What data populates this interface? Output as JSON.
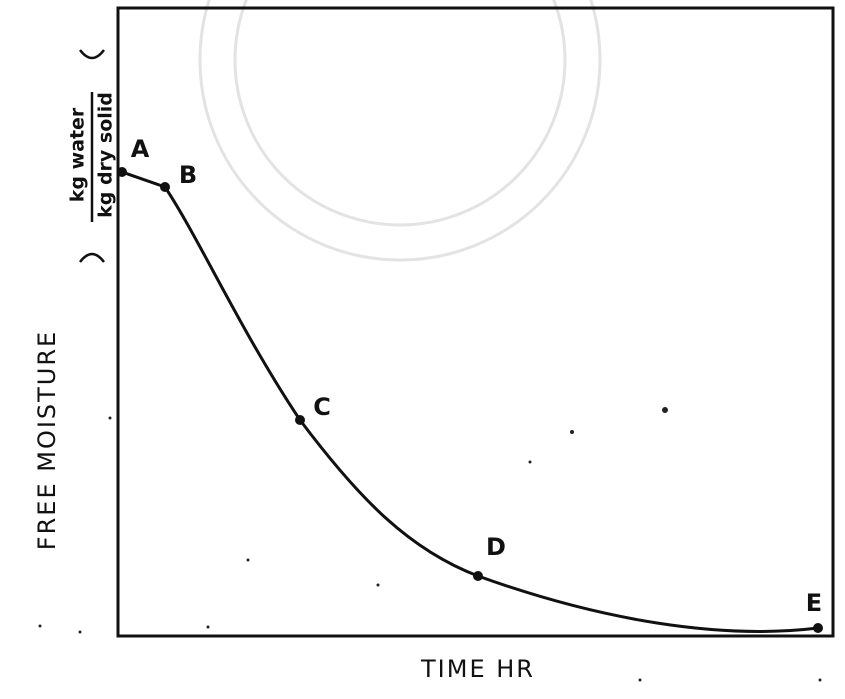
{
  "axes": {
    "x_label": "TIME HR",
    "y_label": "FREE MOISTURE",
    "y_unit_numerator": "kg water",
    "y_unit_denominator": "kg dry solid"
  },
  "points": [
    {
      "label": "A"
    },
    {
      "label": "B"
    },
    {
      "label": "C"
    },
    {
      "label": "D"
    },
    {
      "label": "E"
    }
  ]
}
